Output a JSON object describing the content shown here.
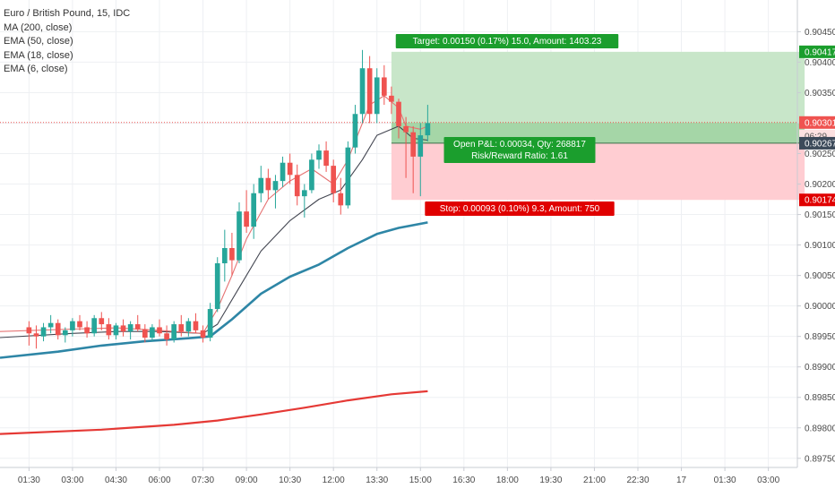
{
  "legend": {
    "symbol": "Euro / British Pound, 15, IDC",
    "indicators": [
      "MA (200, close)",
      "EMA (50, close)",
      "EMA (18, close)",
      "EMA (6, close)"
    ]
  },
  "colors": {
    "up": "#26a69a",
    "down": "#ef5350",
    "ma200": "#e53935",
    "ema50": "#2e86a6",
    "ema18": "#434651",
    "ema6": "#e57373",
    "target_zone": "#c8e6c9",
    "target_zone_strong": "#a5d6a7",
    "stop_zone": "#ffcdd2",
    "target_label": "#1b9e2d",
    "stop_label": "#e00000",
    "grid": "#eef0f3"
  },
  "chart_data": {
    "type": "candlestick",
    "ylim": [
      0.89735,
      0.90502
    ],
    "y_ticks": [
      0.8975,
      0.898,
      0.8985,
      0.899,
      0.8995,
      0.9,
      0.9005,
      0.901,
      0.9015,
      0.902,
      0.9025,
      0.903,
      0.9035,
      0.904,
      0.9045
    ],
    "y_tick_labels": [
      "0.89750",
      "0.89800",
      "0.89850",
      "0.89900",
      "0.89950",
      "0.90000",
      "0.90050",
      "0.90100",
      "0.90150",
      "0.90200",
      "0.90250",
      "0.90300",
      "0.90350",
      "0.90400",
      "0.90450"
    ],
    "x_ticks": [
      0,
      6,
      12,
      18,
      24,
      30,
      36,
      42,
      48,
      54,
      60,
      66,
      72,
      78,
      84,
      90,
      96,
      102
    ],
    "x_tick_labels": [
      "01:30",
      "03:00",
      "04:30",
      "06:00",
      "07:30",
      "09:00",
      "10:30",
      "12:00",
      "13:30",
      "15:00",
      "16:30",
      "18:00",
      "19:30",
      "21:00",
      "22:30",
      "17",
      "01:30",
      "03:00"
    ],
    "xlim": [
      -4,
      106
    ],
    "candles": [
      [
        0.89965,
        0.89975,
        0.89935,
        0.89955
      ],
      [
        0.89955,
        0.89968,
        0.8993,
        0.8995
      ],
      [
        0.8995,
        0.89972,
        0.89942,
        0.89965
      ],
      [
        0.89965,
        0.89985,
        0.89955,
        0.89972
      ],
      [
        0.89972,
        0.89978,
        0.89945,
        0.89952
      ],
      [
        0.89952,
        0.89965,
        0.8994,
        0.8996
      ],
      [
        0.8996,
        0.8998,
        0.8995,
        0.89975
      ],
      [
        0.89975,
        0.89985,
        0.8996,
        0.89965
      ],
      [
        0.89965,
        0.89975,
        0.89948,
        0.89955
      ],
      [
        0.89955,
        0.89985,
        0.8995,
        0.8998
      ],
      [
        0.8998,
        0.8999,
        0.8996,
        0.8997
      ],
      [
        0.8997,
        0.8998,
        0.89945,
        0.89952
      ],
      [
        0.89952,
        0.89972,
        0.89945,
        0.89968
      ],
      [
        0.89968,
        0.89978,
        0.8995,
        0.89958
      ],
      [
        0.89958,
        0.89975,
        0.89945,
        0.8997
      ],
      [
        0.8997,
        0.89985,
        0.89958,
        0.89962
      ],
      [
        0.89962,
        0.8997,
        0.8994,
        0.89948
      ],
      [
        0.89948,
        0.8997,
        0.89942,
        0.89965
      ],
      [
        0.89965,
        0.89978,
        0.8995,
        0.89955
      ],
      [
        0.89955,
        0.89968,
        0.89935,
        0.89945
      ],
      [
        0.89945,
        0.89975,
        0.8994,
        0.8997
      ],
      [
        0.8997,
        0.89985,
        0.8995,
        0.89958
      ],
      [
        0.89958,
        0.8998,
        0.8995,
        0.89975
      ],
      [
        0.89975,
        0.89988,
        0.89955,
        0.8996
      ],
      [
        0.8996,
        0.89968,
        0.8994,
        0.89948
      ],
      [
        0.89948,
        0.90005,
        0.89942,
        0.89995
      ],
      [
        0.89995,
        0.9008,
        0.8999,
        0.9007
      ],
      [
        0.9007,
        0.90125,
        0.9004,
        0.90095
      ],
      [
        0.90095,
        0.9012,
        0.9005,
        0.90075
      ],
      [
        0.90075,
        0.9017,
        0.9007,
        0.90155
      ],
      [
        0.90155,
        0.9019,
        0.9012,
        0.9013
      ],
      [
        0.9013,
        0.902,
        0.9011,
        0.90185
      ],
      [
        0.90185,
        0.9023,
        0.9017,
        0.9021
      ],
      [
        0.9021,
        0.90225,
        0.90175,
        0.9019
      ],
      [
        0.9019,
        0.90215,
        0.9016,
        0.90205
      ],
      [
        0.90205,
        0.90245,
        0.90195,
        0.90235
      ],
      [
        0.90235,
        0.9025,
        0.902,
        0.90215
      ],
      [
        0.90215,
        0.90232,
        0.90165,
        0.9018
      ],
      [
        0.9018,
        0.902,
        0.90145,
        0.9019
      ],
      [
        0.9019,
        0.9025,
        0.90185,
        0.9024
      ],
      [
        0.9024,
        0.90265,
        0.90225,
        0.90255
      ],
      [
        0.90255,
        0.9027,
        0.9022,
        0.9023
      ],
      [
        0.9023,
        0.9024,
        0.9017,
        0.90185
      ],
      [
        0.90185,
        0.9021,
        0.9015,
        0.90165
      ],
      [
        0.90165,
        0.9027,
        0.9016,
        0.9026
      ],
      [
        0.9026,
        0.9033,
        0.9025,
        0.90315
      ],
      [
        0.90315,
        0.9042,
        0.903,
        0.9039
      ],
      [
        0.9039,
        0.9041,
        0.903,
        0.90315
      ],
      [
        0.90315,
        0.9039,
        0.903,
        0.90375
      ],
      [
        0.90375,
        0.90395,
        0.9033,
        0.90345
      ],
      [
        0.90345,
        0.9036,
        0.90315,
        0.90335
      ],
      [
        0.90335,
        0.9034,
        0.90275,
        0.90295
      ],
      [
        0.90295,
        0.9031,
        0.9021,
        0.90285
      ],
      [
        0.90285,
        0.90295,
        0.90185,
        0.90245
      ],
      [
        0.90245,
        0.903,
        0.9018,
        0.9028
      ],
      [
        0.9028,
        0.9033,
        0.9027,
        0.903
      ]
    ],
    "series": [
      {
        "name": "MA (200, close)",
        "x": [
          -4,
          10,
          20,
          26,
          32,
          38,
          44,
          50,
          55
        ],
        "values": [
          0.8979,
          0.89797,
          0.89805,
          0.89812,
          0.89822,
          0.89833,
          0.89845,
          0.89855,
          0.8986
        ]
      },
      {
        "name": "EMA (50, close)",
        "x": [
          -4,
          4,
          10,
          16,
          22,
          25,
          28,
          32,
          36,
          40,
          44,
          48,
          51,
          55
        ],
        "values": [
          0.89915,
          0.89925,
          0.89935,
          0.89942,
          0.89947,
          0.8995,
          0.89978,
          0.9002,
          0.90048,
          0.90068,
          0.90095,
          0.90118,
          0.90128,
          0.90137
        ]
      },
      {
        "name": "EMA (18, close)",
        "x": [
          -4,
          6,
          12,
          18,
          24,
          26,
          29,
          32,
          36,
          40,
          43,
          46,
          48,
          51,
          53,
          55
        ],
        "values": [
          0.89948,
          0.89955,
          0.89958,
          0.89958,
          0.89955,
          0.8997,
          0.9003,
          0.9009,
          0.9014,
          0.90175,
          0.9019,
          0.9024,
          0.9028,
          0.90295,
          0.90275,
          0.90272
        ]
      },
      {
        "name": "EMA (6, close)",
        "x": [
          -4,
          6,
          12,
          18,
          24,
          26,
          28,
          30,
          33,
          36,
          39,
          42,
          44,
          46,
          47,
          49,
          51,
          52,
          54,
          55
        ],
        "values": [
          0.89958,
          0.89962,
          0.89964,
          0.8996,
          0.89955,
          0.89995,
          0.9005,
          0.9011,
          0.90175,
          0.90205,
          0.90225,
          0.902,
          0.9024,
          0.903,
          0.9033,
          0.90345,
          0.90325,
          0.90295,
          0.9029,
          0.90295
        ]
      }
    ],
    "position": {
      "x_start": 50,
      "x_end": 107,
      "entry": 0.90267,
      "target": 0.90417,
      "stop": 0.90174,
      "last": 0.90301
    },
    "price_labels": {
      "target": "0.90417",
      "last": "0.90301",
      "countdown": "06:29",
      "entry": "0.90267",
      "stop": "0.90174"
    },
    "annotations": {
      "target": "Target: 0.00150 (0.17%) 15.0, Amount: 1403.23",
      "pnl": "Open P&L: 0.00034, Qty: 268817",
      "rr": "Risk/Reward Ratio: 1.61",
      "stop": "Stop: 0.00093 (0.10%) 9.3, Amount: 750"
    }
  }
}
